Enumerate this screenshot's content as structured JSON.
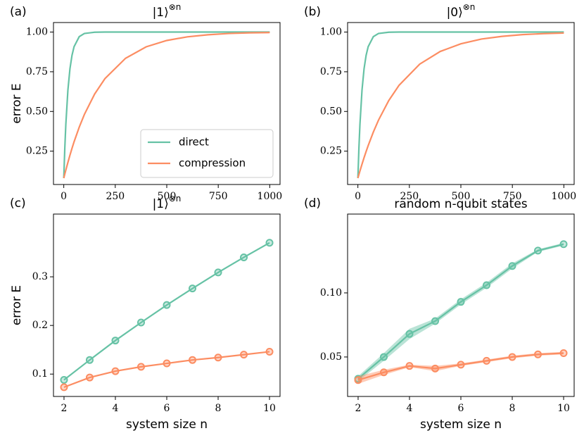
{
  "chart_data": [
    {
      "type": "line",
      "panel": "(a)",
      "title": "|1⟩",
      "title_superscript": "⊗n",
      "y_label": "error E",
      "x": [
        0,
        5,
        10,
        20,
        30,
        40,
        50,
        75,
        100,
        150,
        200,
        300,
        400,
        500,
        600,
        700,
        800,
        900,
        1000
      ],
      "series": [
        {
          "name": "direct",
          "color": "#66c2a5",
          "values": [
            0.08,
            0.269,
            0.419,
            0.634,
            0.769,
            0.854,
            0.908,
            0.971,
            0.991,
            0.999,
            1,
            1,
            1,
            1,
            1,
            1,
            1,
            1,
            1
          ]
        },
        {
          "name": "compression",
          "color": "#fc8d62",
          "values": [
            0.08,
            0.106,
            0.131,
            0.179,
            0.225,
            0.268,
            0.309,
            0.401,
            0.481,
            0.61,
            0.707,
            0.835,
            0.907,
            0.947,
            0.97,
            0.983,
            0.991,
            0.995,
            0.997
          ]
        }
      ],
      "xlim": [
        -50,
        1050
      ],
      "xticks": [
        0,
        250,
        500,
        750,
        1000
      ],
      "ylim": [
        0.04,
        1.06
      ],
      "yticks": [
        0.25,
        {
          "value": 0.5,
          "label": "0.50"
        },
        0.75,
        {
          "value": 1,
          "label": "1.00"
        }
      ],
      "legend": "lower right"
    },
    {
      "type": "line",
      "panel": "(b)",
      "title": "|0⟩",
      "title_superscript": "⊗n",
      "x": [
        0,
        5,
        10,
        20,
        30,
        40,
        50,
        75,
        100,
        150,
        200,
        300,
        400,
        500,
        600,
        700,
        800,
        900,
        1000
      ],
      "series": [
        {
          "color": "#66c2a5",
          "values": [
            0.08,
            0.269,
            0.419,
            0.634,
            0.769,
            0.854,
            0.908,
            0.971,
            0.991,
            0.999,
            1,
            1,
            1,
            1,
            1,
            1,
            1,
            1,
            1
          ]
        },
        {
          "color": "#fc8d62",
          "values": [
            0.08,
            0.103,
            0.125,
            0.168,
            0.209,
            0.248,
            0.285,
            0.37,
            0.445,
            0.569,
            0.665,
            0.798,
            0.878,
            0.926,
            0.956,
            0.973,
            0.984,
            0.99,
            0.994
          ]
        }
      ],
      "xlim": [
        -50,
        1050
      ],
      "xticks": [
        0,
        250,
        500,
        750,
        1000
      ],
      "ylim": [
        0.04,
        1.06
      ],
      "yticks": [
        0.25,
        {
          "value": 0.5,
          "label": "0.50"
        },
        0.75,
        {
          "value": 1,
          "label": "1.00"
        }
      ]
    },
    {
      "type": "line",
      "panel": "(c)",
      "title": "|1⟩",
      "title_superscript": "⊗n",
      "y_label": "error E",
      "x_label": "system size n",
      "x": [
        2,
        3,
        4,
        5,
        6,
        7,
        8,
        9,
        10
      ],
      "markers": true,
      "series": [
        {
          "color": "#66c2a5",
          "values": [
            0.088,
            0.129,
            0.169,
            0.206,
            0.242,
            0.276,
            0.309,
            0.34,
            0.37
          ]
        },
        {
          "color": "#fc8d62",
          "values": [
            0.073,
            0.093,
            0.106,
            0.115,
            0.122,
            0.129,
            0.134,
            0.14,
            0.146
          ]
        }
      ],
      "xlim": [
        1.59,
        10.41
      ],
      "xticks": [
        2,
        4,
        6,
        8,
        10
      ],
      "ylim": [
        0.054,
        0.429
      ],
      "yticks": [
        0.1,
        0.2,
        0.3
      ]
    },
    {
      "type": "line",
      "panel": "(d)",
      "title": "random n-qubit states",
      "x_label": "system size n",
      "x": [
        2,
        3,
        4,
        5,
        6,
        7,
        8,
        9,
        10
      ],
      "markers": true,
      "series": [
        {
          "color": "#66c2a5",
          "values": [
            0.033,
            0.05,
            0.068,
            0.078,
            0.093,
            0.106,
            0.121,
            0.133,
            0.138
          ],
          "errors": [
            0.002,
            0.003,
            0.004,
            0.002,
            0.002,
            0.002,
            0.002,
            0.001,
            0.001
          ]
        },
        {
          "color": "#fc8d62",
          "values": [
            0.032,
            0.038,
            0.043,
            0.041,
            0.044,
            0.047,
            0.05,
            0.052,
            0.053
          ],
          "errors": [
            0.003,
            0.002,
            0.001,
            0.002,
            0.001,
            0.001,
            0.001,
            0.001,
            0.001
          ]
        }
      ],
      "xlim": [
        1.59,
        10.41
      ],
      "xticks": [
        2,
        4,
        6,
        8,
        10
      ],
      "ylim": [
        0.0192,
        0.1615
      ],
      "yticks": [
        0.05,
        {
          "value": 0.1,
          "label": "0.10"
        }
      ]
    }
  ]
}
